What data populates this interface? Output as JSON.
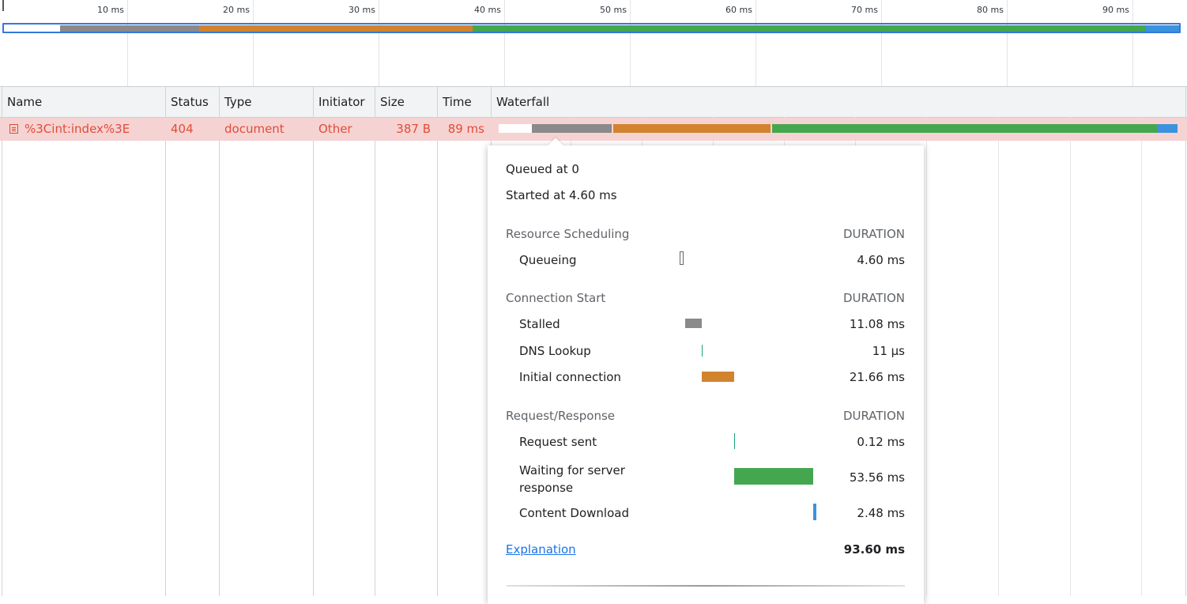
{
  "overview": {
    "ticks": [
      "10 ms",
      "20 ms",
      "30 ms",
      "40 ms",
      "50 ms",
      "60 ms",
      "70 ms",
      "80 ms",
      "90 ms"
    ]
  },
  "table": {
    "columns": {
      "name": "Name",
      "status": "Status",
      "type": "Type",
      "initiator": "Initiator",
      "size": "Size",
      "time": "Time",
      "waterfall": "Waterfall"
    },
    "rows": [
      {
        "name": "%3Cint:index%3E",
        "status": "404",
        "type": "document",
        "initiator": "Other",
        "size": "387 B",
        "time": "89 ms"
      }
    ]
  },
  "timing": {
    "queued_at": "Queued at 0",
    "started_at": "Started at 4.60 ms",
    "duration_header": "DURATION",
    "sections": [
      {
        "title": "Resource Scheduling",
        "items": [
          {
            "label": "Queueing",
            "value": "4.60 ms"
          }
        ]
      },
      {
        "title": "Connection Start",
        "items": [
          {
            "label": "Stalled",
            "value": "11.08 ms"
          },
          {
            "label": "DNS Lookup",
            "value": "11 µs"
          },
          {
            "label": "Initial connection",
            "value": "21.66 ms"
          }
        ]
      },
      {
        "title": "Request/Response",
        "items": [
          {
            "label": "Request sent",
            "value": "0.12 ms"
          },
          {
            "label": "Waiting for server response",
            "value": "53.56 ms"
          },
          {
            "label": "Content Download",
            "value": "2.48 ms"
          }
        ]
      }
    ],
    "explanation_link": "Explanation",
    "total": "93.60 ms"
  },
  "colors": {
    "queueing": "#ffffff",
    "stalled": "#8a8a8a",
    "dns": "#1aa27c",
    "initial_connection": "#d2832e",
    "request_sent": "#1aa27c",
    "waiting": "#45a650",
    "content_download": "#3c93dd",
    "error_row": "#f6d3d3",
    "error_text": "#df4d36"
  }
}
